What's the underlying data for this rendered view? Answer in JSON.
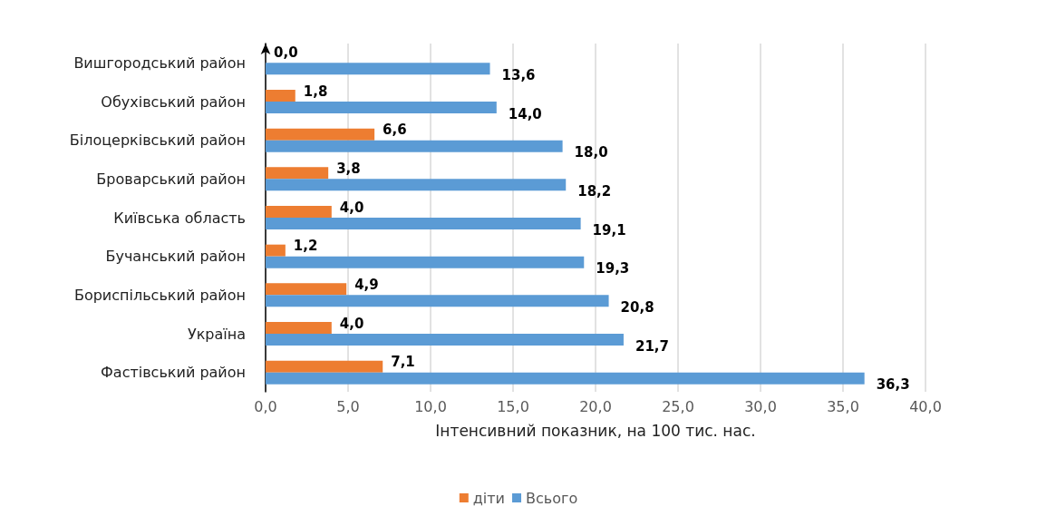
{
  "chart_data": {
    "type": "bar",
    "orientation": "horizontal",
    "xlabel": "Інтенсивний показник, на 100 тис. нас.",
    "categories": [
      "Вишгородський район",
      "Обухівський район",
      "Білоцерківський район",
      "Броварський район",
      "Київська область",
      "Бучанський район",
      "Бориспільський район",
      "Україна",
      "Фастівський район"
    ],
    "series": [
      {
        "name": "діти",
        "color": "#ed7d31",
        "values": [
          0.0,
          1.8,
          6.6,
          3.8,
          4.0,
          1.2,
          4.9,
          4.0,
          7.1
        ],
        "value_labels": [
          "0,0",
          "1,8",
          "6,6",
          "3,8",
          "4,0",
          "1,2",
          "4,9",
          "4,0",
          "7,1"
        ]
      },
      {
        "name": "Всього",
        "color": "#5b9bd5",
        "values": [
          13.6,
          14.0,
          18.0,
          18.2,
          19.1,
          19.3,
          20.8,
          21.7,
          36.3
        ],
        "value_labels": [
          "13,6",
          "14,0",
          "18,0",
          "18,2",
          "19,1",
          "19,3",
          "20,8",
          "21,7",
          "36,3"
        ]
      }
    ],
    "xlim": [
      0,
      40
    ],
    "xticks": [
      {
        "value": 0,
        "label": "0,0"
      },
      {
        "value": 5,
        "label": "5,0"
      },
      {
        "value": 10,
        "label": "10,0"
      },
      {
        "value": 15,
        "label": "15,0"
      },
      {
        "value": 20,
        "label": "20,0"
      },
      {
        "value": 25,
        "label": "25,0"
      },
      {
        "value": 30,
        "label": "30,0"
      },
      {
        "value": 35,
        "label": "35,0"
      },
      {
        "value": 40,
        "label": "40,0"
      }
    ],
    "grid": "x",
    "legend": "bottom"
  }
}
